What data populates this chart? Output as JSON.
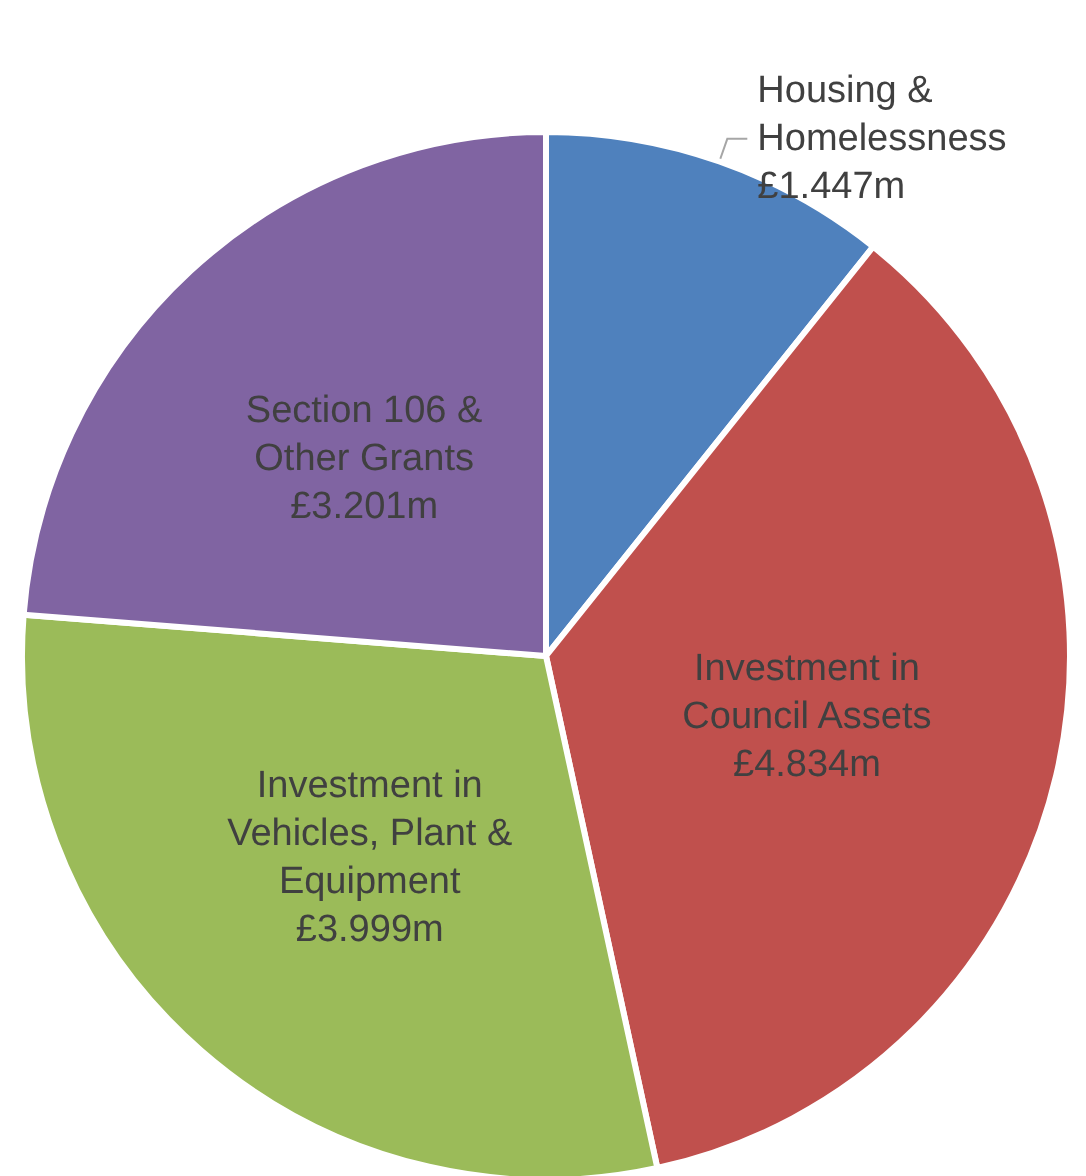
{
  "chart_data": {
    "type": "pie",
    "categories": [
      "Housing &\nHomelessness",
      "Investment in\nCouncil Assets",
      "Investment in\nVehicles, Plant &\nEquipment",
      "Section 106 &\nOther Grants"
    ],
    "values": [
      1.447,
      4.834,
      3.999,
      3.201
    ],
    "value_labels": [
      "£1.447m",
      "£4.834m",
      "£3.999m",
      "£3.201m"
    ],
    "colors": [
      "#4f81bd",
      "#c0504d",
      "#9bbb59",
      "#8064a2"
    ],
    "legend": false
  }
}
